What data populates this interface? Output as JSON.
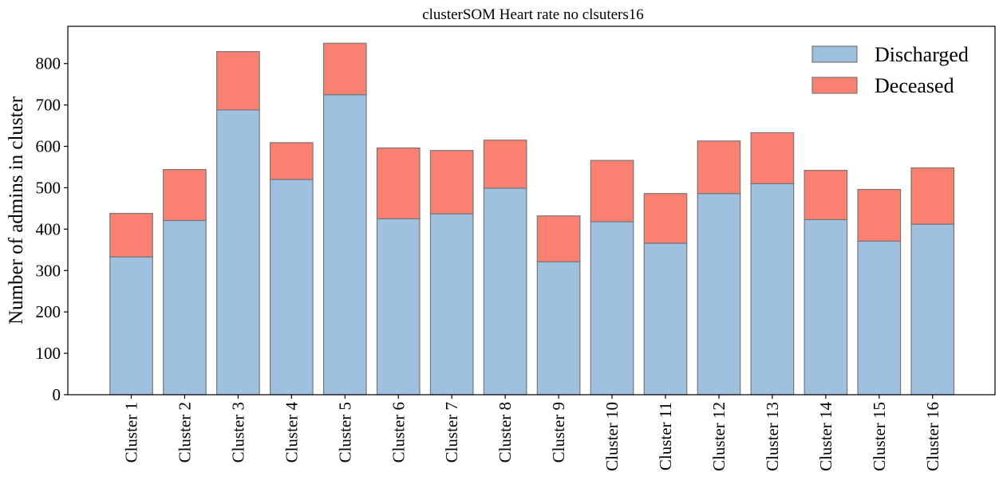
{
  "chart_data": {
    "type": "bar",
    "stacked": true,
    "title": "clusterSOM Heart rate no clsuters16",
    "xlabel": "",
    "ylabel": "Number of admins in cluster",
    "ylim": [
      0,
      890
    ],
    "yticks": [
      0,
      100,
      200,
      300,
      400,
      500,
      600,
      700,
      800
    ],
    "grid": false,
    "legend_position": "top-right",
    "categories": [
      "Cluster 1",
      "Cluster 2",
      "Cluster 3",
      "Cluster 4",
      "Cluster 5",
      "Cluster 6",
      "Cluster 7",
      "Cluster 8",
      "Cluster 9",
      "Cluster 10",
      "Cluster 11",
      "Cluster 12",
      "Cluster 13",
      "Cluster 14",
      "Cluster 15",
      "Cluster 16"
    ],
    "series": [
      {
        "name": "Discharged",
        "color": "#9fc0df",
        "values": [
          333,
          421,
          688,
          520,
          725,
          425,
          437,
          499,
          321,
          418,
          366,
          486,
          510,
          423,
          371,
          412
        ]
      },
      {
        "name": "Deceased",
        "color": "#fa8072",
        "values": [
          105,
          123,
          141,
          89,
          124,
          171,
          153,
          116,
          111,
          148,
          120,
          127,
          123,
          119,
          125,
          136
        ]
      }
    ]
  }
}
